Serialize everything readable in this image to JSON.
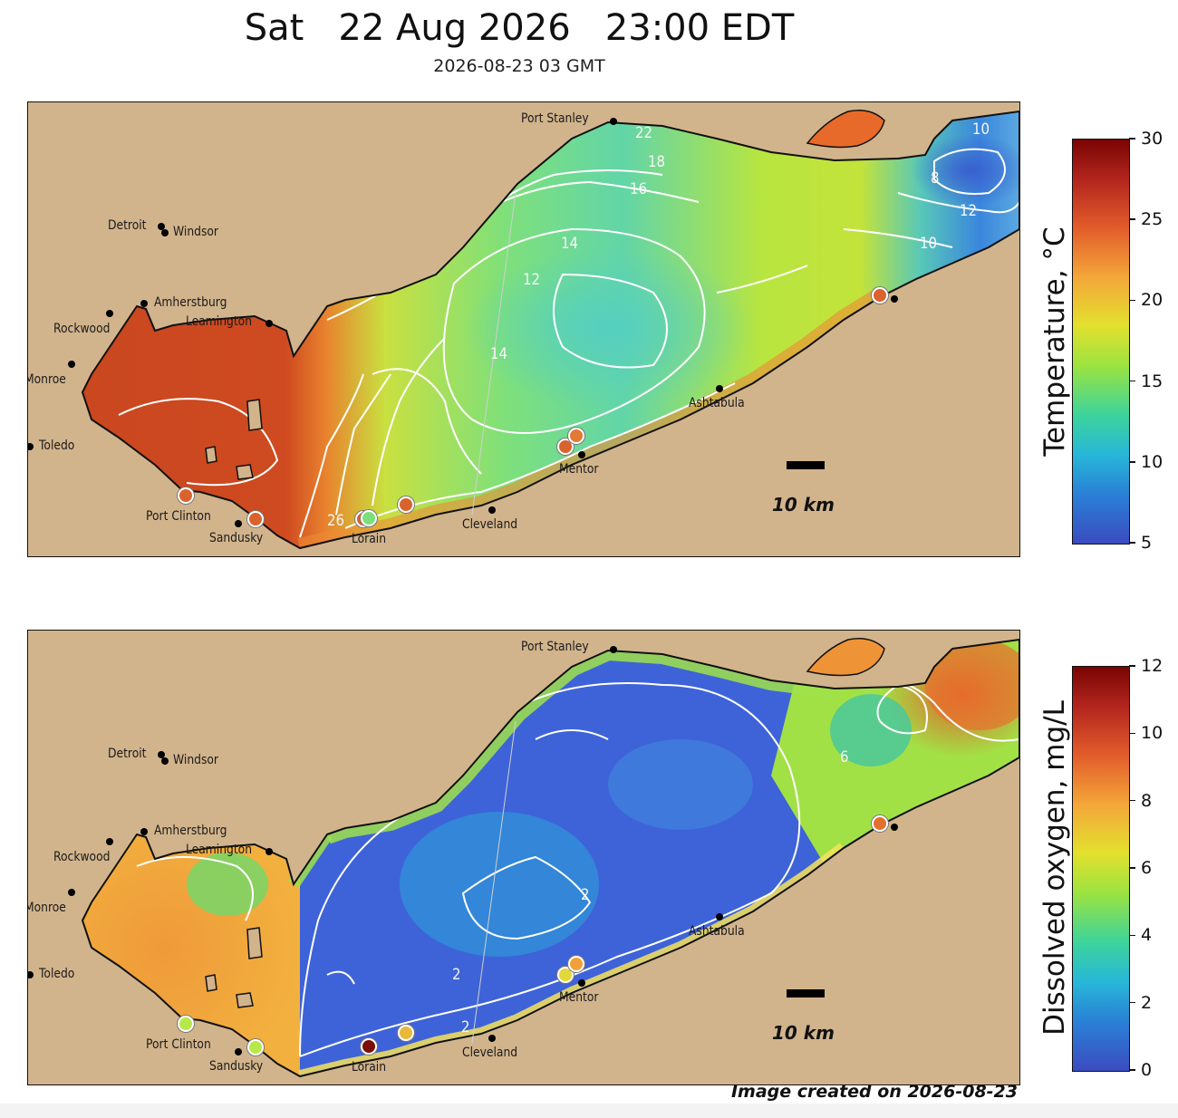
{
  "header": {
    "title": "Sat   22 Aug 2026   23:00 EDT",
    "subtitle": "2026-08-23 03 GMT"
  },
  "cities": [
    {
      "id": "port-stanley",
      "name": "Port Stanley"
    },
    {
      "id": "detroit",
      "name": "Detroit"
    },
    {
      "id": "windsor",
      "name": "Windsor"
    },
    {
      "id": "amherstburg",
      "name": "Amherstburg"
    },
    {
      "id": "leamington",
      "name": "Leamington"
    },
    {
      "id": "rockwood",
      "name": "Rockwood"
    },
    {
      "id": "monroe",
      "name": "Monroe"
    },
    {
      "id": "toledo",
      "name": "Toledo"
    },
    {
      "id": "port-clinton",
      "name": "Port Clinton"
    },
    {
      "id": "sandusky",
      "name": "Sandusky"
    },
    {
      "id": "lorain",
      "name": "Lorain"
    },
    {
      "id": "cleveland",
      "name": "Cleveland"
    },
    {
      "id": "mentor",
      "name": "Mentor"
    },
    {
      "id": "ashtabula",
      "name": "Ashtabula"
    }
  ],
  "scale_label": "10 km",
  "panels": {
    "temperature": {
      "colorbar": {
        "label": "Temperature, °C",
        "min": 5,
        "max": 30,
        "ticks": [
          "30",
          "25",
          "20",
          "15",
          "10",
          "5"
        ]
      },
      "contour_labels": [
        "22",
        "18",
        "16",
        "14",
        "12",
        "14",
        "10",
        "8",
        "12",
        "10",
        "26"
      ],
      "land_color": "#d2b48c"
    },
    "oxygen": {
      "colorbar": {
        "label": "Dissolved oxygen, mg/L",
        "min": 0,
        "max": 12,
        "ticks": [
          "12",
          "10",
          "8",
          "6",
          "4",
          "2",
          "0"
        ]
      },
      "contour_labels": [
        "6",
        "2",
        "2",
        "2"
      ],
      "land_color": "#d2b48c"
    }
  },
  "colormap": [
    "#3b4cc0",
    "#2a7fd6",
    "#27b7d8",
    "#3ed49a",
    "#9ce340",
    "#e3e02e",
    "#f4a63a",
    "#e25d2b",
    "#b3261e",
    "#7a0403"
  ],
  "footer": "Image created on 2026-08-23"
}
